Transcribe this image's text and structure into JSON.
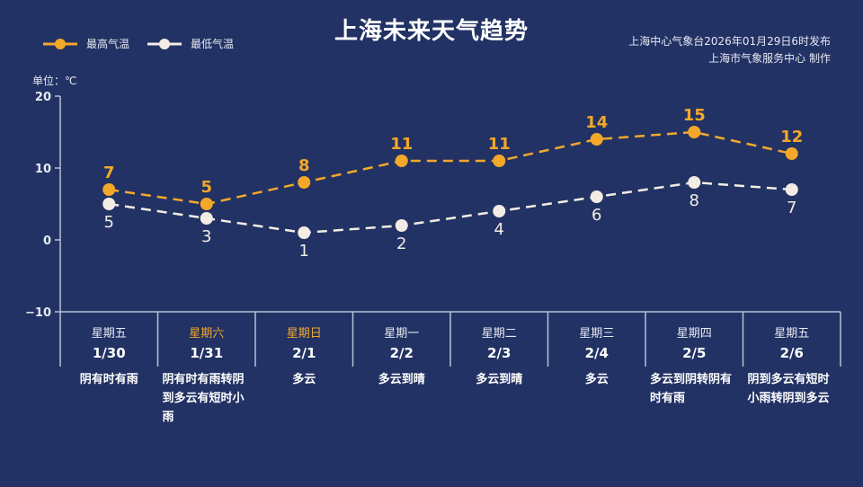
{
  "header": {
    "title": "上海未来天气趋势",
    "publisher_line1": "上海中心气象台2026年01月29日6时发布",
    "publisher_line2": "上海市气象服务中心  制作"
  },
  "legend": {
    "high_label": "最高气温",
    "low_label": "最低气温"
  },
  "axis": {
    "unit": "单位：℃",
    "ticks": [
      "20",
      "10",
      "0",
      "−10"
    ]
  },
  "colors": {
    "background": "#223264",
    "high": "#f4a82a",
    "low": "#f3ece4",
    "axis": "#b8c0d6",
    "weekend_text": "#f4a82a"
  },
  "days": [
    {
      "weekday": "星期五",
      "date": "1/30",
      "weather": "阴有时有雨",
      "weekend": false
    },
    {
      "weekday": "星期六",
      "date": "1/31",
      "weather": "阴有时有雨转阴到多云有短时小雨",
      "weekend": true
    },
    {
      "weekday": "星期日",
      "date": "2/1",
      "weather": "多云",
      "weekend": true
    },
    {
      "weekday": "星期一",
      "date": "2/2",
      "weather": "多云到晴",
      "weekend": false
    },
    {
      "weekday": "星期二",
      "date": "2/3",
      "weather": "多云到晴",
      "weekend": false
    },
    {
      "weekday": "星期三",
      "date": "2/4",
      "weather": "多云",
      "weekend": false
    },
    {
      "weekday": "星期四",
      "date": "2/5",
      "weather": "多云到阴转阴有时有雨",
      "weekend": false
    },
    {
      "weekday": "星期五",
      "date": "2/6",
      "weather": "阴到多云有短时小雨转阴到多云",
      "weekend": false
    }
  ],
  "chart_data": {
    "type": "line",
    "title": "上海未来天气趋势",
    "xlabel": "",
    "ylabel": "单位：℃",
    "categories": [
      "1/30",
      "1/31",
      "2/1",
      "2/2",
      "2/3",
      "2/4",
      "2/5",
      "2/6"
    ],
    "series": [
      {
        "name": "最高气温",
        "values": [
          7,
          5,
          8,
          11,
          11,
          14,
          15,
          12
        ],
        "color": "#f4a82a",
        "style": "dashed"
      },
      {
        "name": "最低气温",
        "values": [
          5,
          3,
          1,
          2,
          4,
          6,
          8,
          7
        ],
        "color": "#f3ece4",
        "style": "dashed"
      }
    ],
    "ylim": [
      -10,
      20
    ],
    "yticks": [
      -10,
      0,
      10,
      20
    ],
    "grid": false,
    "legend_position": "top-left",
    "data_labels": true
  }
}
